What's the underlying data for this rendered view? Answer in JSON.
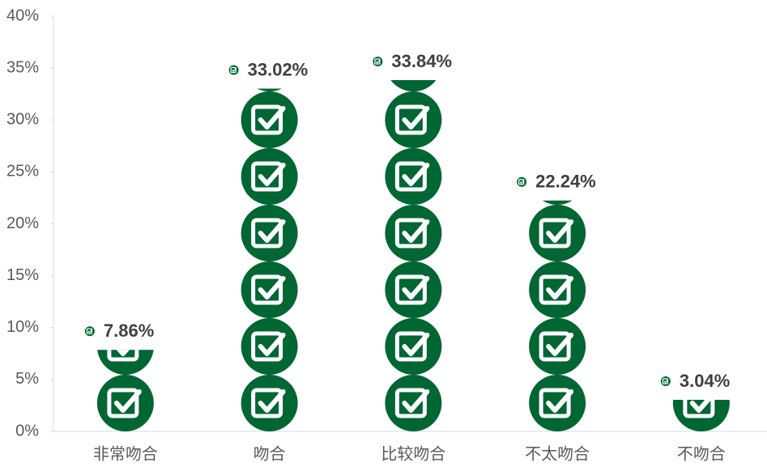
{
  "chart_data": {
    "type": "pictograph",
    "categories": [
      "非常吻合",
      "吻合",
      "比较吻合",
      "不太吻合",
      "不吻合"
    ],
    "values": [
      7.86,
      33.02,
      33.84,
      22.24,
      3.04
    ],
    "value_labels": [
      "7.86%",
      "33.02%",
      "33.84%",
      "22.24%",
      "3.04%"
    ],
    "color": "#006633",
    "ylim": [
      0,
      40
    ],
    "yticks": [
      {
        "value": 0,
        "label": "0%"
      },
      {
        "value": 5,
        "label": "5%"
      },
      {
        "value": 10,
        "label": "10%"
      },
      {
        "value": 15,
        "label": "15%"
      },
      {
        "value": 20,
        "label": "20%"
      },
      {
        "value": 25,
        "label": "25%"
      },
      {
        "value": 30,
        "label": "30%"
      },
      {
        "value": 35,
        "label": "35%"
      },
      {
        "value": 40,
        "label": "40%"
      }
    ],
    "grid": false
  }
}
